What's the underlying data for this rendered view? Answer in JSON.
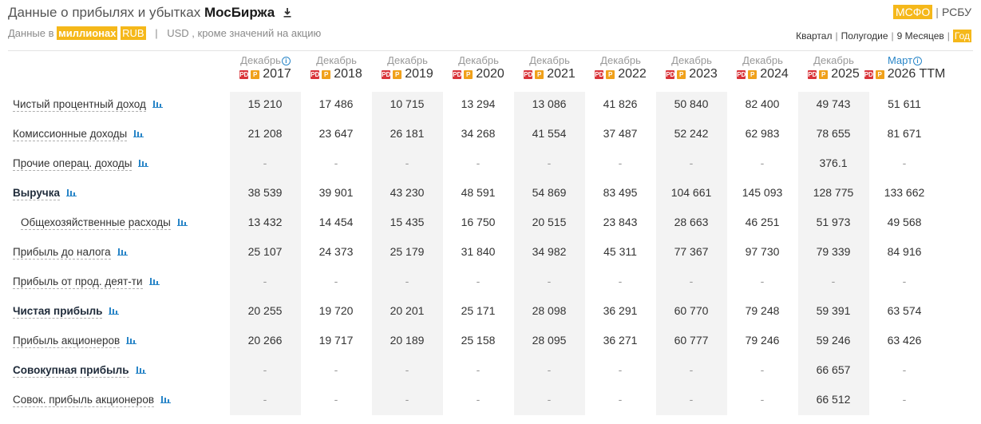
{
  "header": {
    "title_prefix": "Данные о прибылях и убытках",
    "company": "МосБиржа",
    "download_icon": "download-icon"
  },
  "subtitle": {
    "prefix": "Данные в",
    "units": "миллионах",
    "currency_active": "RUB",
    "pipe": "|",
    "currency_alt": "USD",
    "suffix": ", кроме значений на акцию"
  },
  "standards": {
    "active": "МСФО",
    "sep": "|",
    "alt": "РСБУ"
  },
  "periods": [
    {
      "label": "Квартал",
      "active": false
    },
    {
      "label": "Полугодие",
      "active": false
    },
    {
      "label": "9 Месяцев",
      "active": false
    },
    {
      "label": "Год",
      "active": true
    }
  ],
  "period_sep": "|",
  "accent_color": "#f5b81a",
  "columns": [
    {
      "month": "Декабрь",
      "year": "2017",
      "info": true,
      "shaded": true
    },
    {
      "month": "Декабрь",
      "year": "2018",
      "info": false,
      "shaded": false
    },
    {
      "month": "Декабрь",
      "year": "2019",
      "info": false,
      "shaded": true
    },
    {
      "month": "Декабрь",
      "year": "2020",
      "info": false,
      "shaded": false
    },
    {
      "month": "Декабрь",
      "year": "2021",
      "info": false,
      "shaded": true
    },
    {
      "month": "Декабрь",
      "year": "2022",
      "info": false,
      "shaded": false
    },
    {
      "month": "Декабрь",
      "year": "2023",
      "info": false,
      "shaded": true
    },
    {
      "month": "Декабрь",
      "year": "2024",
      "info": false,
      "shaded": false
    },
    {
      "month": "Декабрь",
      "year": "2025",
      "info": false,
      "shaded": true
    },
    {
      "month": "Март",
      "year": "2026 TTM",
      "info": true,
      "shaded": false,
      "blue": true
    }
  ],
  "pdf_glyph": "PDF",
  "r_glyph": "Р",
  "info_glyph": "i",
  "rows": [
    {
      "label": "Чистый процентный доход",
      "bold": false,
      "indent": false,
      "values": [
        "15 210",
        "17 486",
        "10 715",
        "13 294",
        "13 086",
        "41 826",
        "50 840",
        "82 400",
        "49 743",
        "51 611"
      ]
    },
    {
      "label": "Комиссионные доходы",
      "bold": false,
      "indent": false,
      "values": [
        "21 208",
        "23 647",
        "26 181",
        "34 268",
        "41 554",
        "37 487",
        "52 242",
        "62 983",
        "78 655",
        "81 671"
      ]
    },
    {
      "label": "Прочие операц. доходы",
      "bold": false,
      "indent": false,
      "values": [
        "-",
        "-",
        "-",
        "-",
        "-",
        "-",
        "-",
        "-",
        "376.1",
        "-"
      ]
    },
    {
      "label": "Выручка",
      "bold": true,
      "indent": false,
      "values": [
        "38 539",
        "39 901",
        "43 230",
        "48 591",
        "54 869",
        "83 495",
        "104 661",
        "145 093",
        "128 775",
        "133 662"
      ]
    },
    {
      "label": "Общехозяйственные расходы",
      "bold": false,
      "indent": true,
      "values": [
        "13 432",
        "14 454",
        "15 435",
        "16 750",
        "20 515",
        "23 843",
        "28 663",
        "46 251",
        "51 973",
        "49 568"
      ]
    },
    {
      "label": "Прибыль до налога",
      "bold": false,
      "indent": false,
      "values": [
        "25 107",
        "24 373",
        "25 179",
        "31 840",
        "34 982",
        "45 311",
        "77 367",
        "97 730",
        "79 339",
        "84 916"
      ]
    },
    {
      "label": "Прибыль от прод. деят-ти",
      "bold": false,
      "indent": false,
      "values": [
        "-",
        "-",
        "-",
        "-",
        "-",
        "-",
        "-",
        "-",
        "-",
        "-"
      ]
    },
    {
      "label": "Чистая прибыль",
      "bold": true,
      "indent": false,
      "values": [
        "20 255",
        "19 720",
        "20 201",
        "25 171",
        "28 098",
        "36 291",
        "60 770",
        "79 248",
        "59 391",
        "63 574"
      ]
    },
    {
      "label": "Прибыль акционеров",
      "bold": false,
      "indent": false,
      "values": [
        "20 266",
        "19 717",
        "20 189",
        "25 158",
        "28 095",
        "36 271",
        "60 777",
        "79 246",
        "59 246",
        "63 426"
      ]
    },
    {
      "label": "Совокупная прибыль",
      "bold": true,
      "indent": false,
      "values": [
        "-",
        "-",
        "-",
        "-",
        "-",
        "-",
        "-",
        "-",
        "66 657",
        "-"
      ]
    },
    {
      "label": "Совок. прибыль акционеров",
      "bold": false,
      "indent": false,
      "values": [
        "-",
        "-",
        "-",
        "-",
        "-",
        "-",
        "-",
        "-",
        "66 512",
        "-"
      ]
    }
  ]
}
